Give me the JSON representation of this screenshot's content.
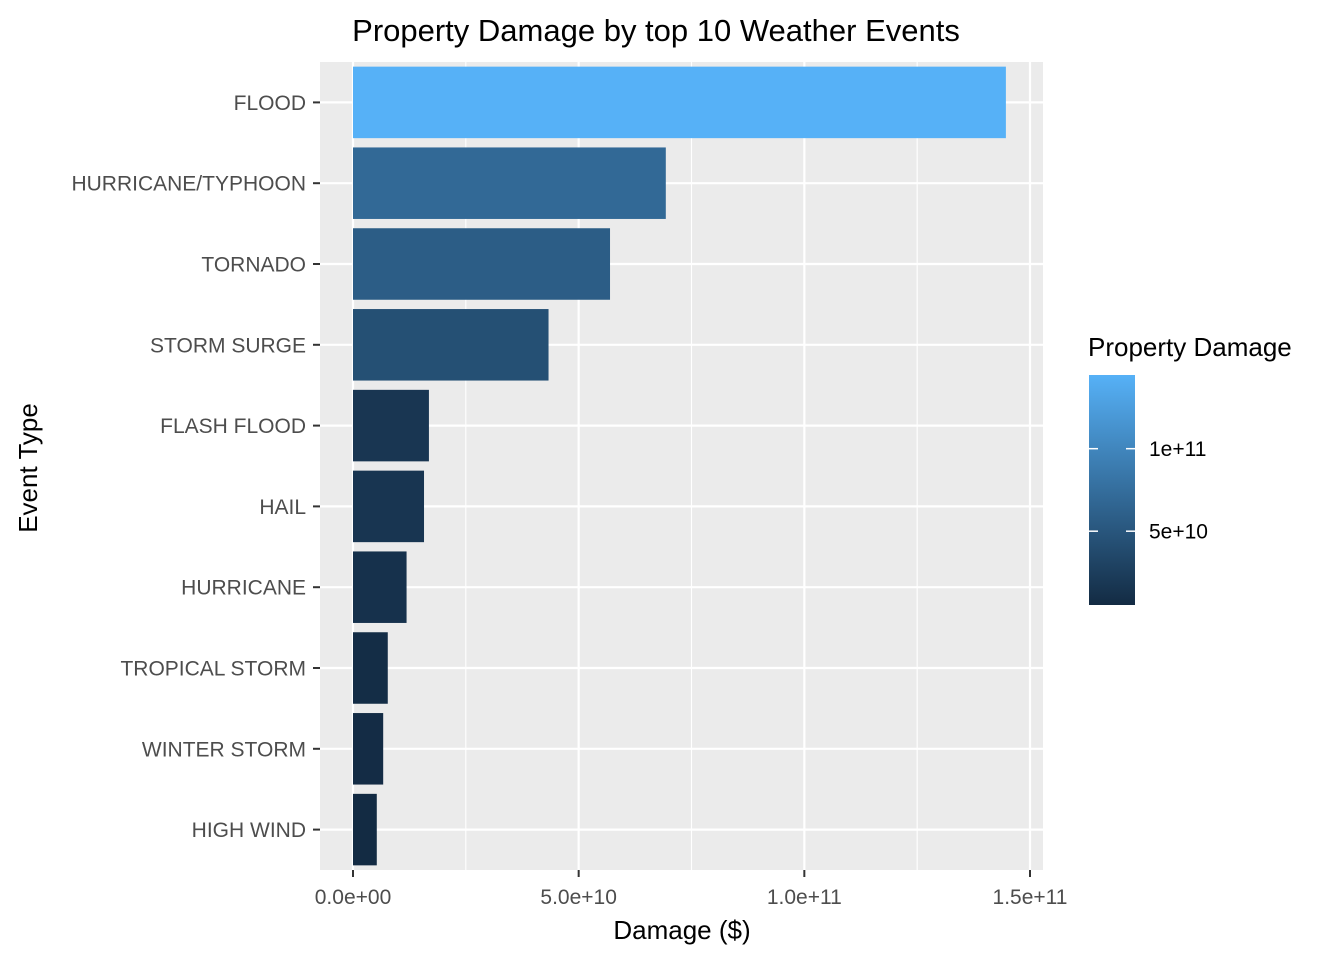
{
  "chart_data": {
    "type": "bar",
    "orientation": "horizontal",
    "title": "Property Damage by top 10 Weather Events",
    "xlabel": "Damage ($)",
    "ylabel": "Event Type",
    "categories": [
      "FLOOD",
      "HURRICANE/TYPHOON",
      "TORNADO",
      "STORM SURGE",
      "FLASH FLOOD",
      "HAIL",
      "HURRICANE",
      "TROPICAL STORM",
      "WINTER STORM",
      "HIGH WIND"
    ],
    "values": [
      144657709807,
      69305840000,
      56947380677,
      43323536000,
      16822673979,
      15735267513,
      11868319010,
      7703890550,
      6688497251,
      5270046295
    ],
    "xlim": [
      0,
      150000000000
    ],
    "x_ticks": [
      0,
      50000000000,
      100000000000,
      150000000000
    ],
    "x_tick_labels": [
      "0.0e+00",
      "5.0e+10",
      "1.0e+11",
      "1.5e+11"
    ],
    "grid": true,
    "panel_background": "#ebebeb",
    "fill_scale": {
      "low_color": "#132b43",
      "high_color": "#56b1f7",
      "title": "Property Damage",
      "breaks": [
        50000000000,
        100000000000
      ],
      "break_labels": [
        "5e+10",
        "1e+11"
      ]
    },
    "legend_position": "right"
  }
}
